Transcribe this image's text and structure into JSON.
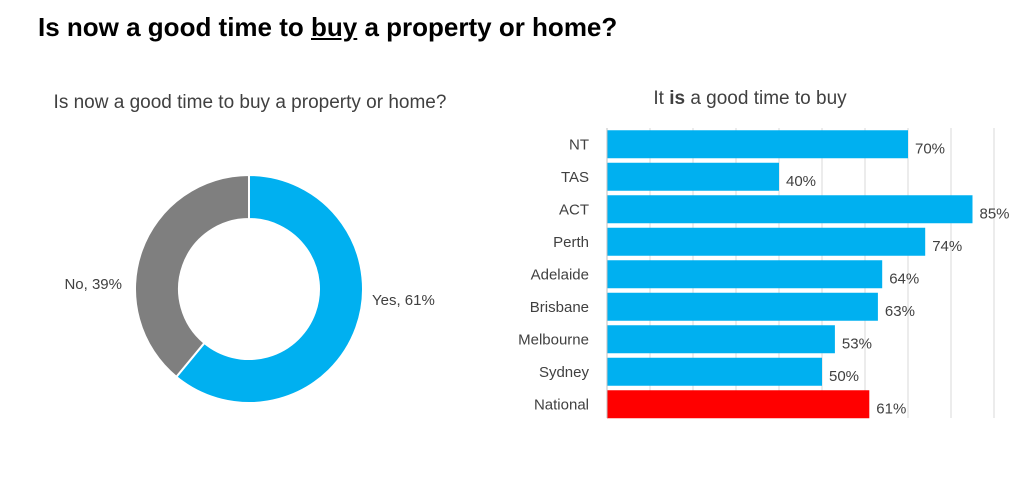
{
  "page": {
    "title_pre": "Is now a good time to ",
    "title_under": "buy",
    "title_post": " a property or home?"
  },
  "chart_data": [
    {
      "type": "pie",
      "donut": true,
      "title": "Is now a good time to buy a property or home?",
      "slices": [
        {
          "label": "Yes",
          "value": 61,
          "text": "Yes, 61%",
          "color": "#00b0f0"
        },
        {
          "label": "No",
          "value": 39,
          "text": "No, 39%",
          "color": "#7f7f7f"
        }
      ]
    },
    {
      "type": "bar",
      "orientation": "horizontal",
      "title_pre": "It ",
      "title_bold": "is",
      "title_post": " a good time to buy",
      "categories": [
        "NT",
        "TAS",
        "ACT",
        "Perth",
        "Adelaide",
        "Brisbane",
        "Melbourne",
        "Sydney",
        "National"
      ],
      "values": [
        70,
        40,
        85,
        74,
        64,
        63,
        53,
        50,
        61
      ],
      "value_labels": [
        "70%",
        "40%",
        "85%",
        "74%",
        "64%",
        "63%",
        "53%",
        "50%",
        "61%"
      ],
      "xlim": [
        0,
        90
      ],
      "grid": true,
      "colors": {
        "default": "#00b0f0",
        "highlight": "#ff0000",
        "highlight_category": "National"
      }
    }
  ]
}
